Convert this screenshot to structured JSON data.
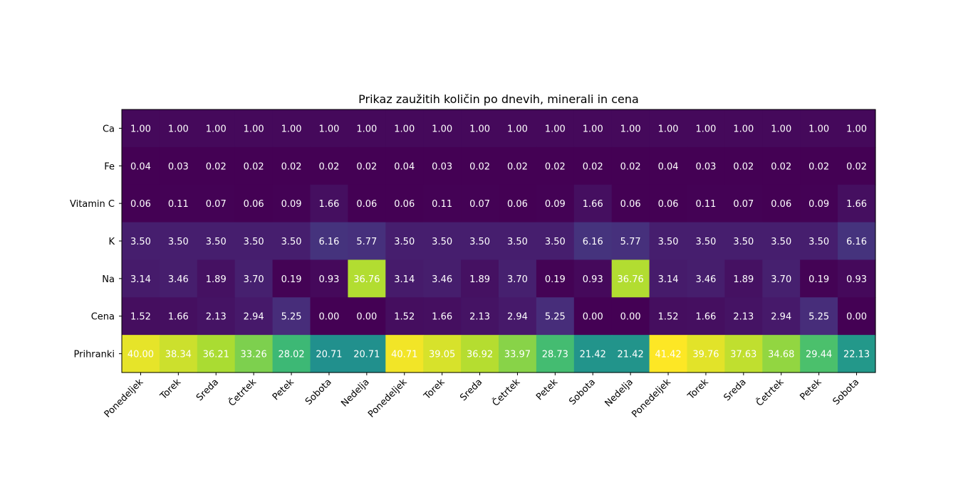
{
  "chart_data": {
    "type": "heatmap",
    "title": "Prikaz zaužitih količin po dnevih, minerali in cena",
    "xlabel": "",
    "ylabel": "",
    "colormap": "viridis",
    "grid": false,
    "legend": "none",
    "x_categories": [
      "Ponedeljek",
      "Torek",
      "Sreda",
      "Četrtek",
      "Petek",
      "Sobota",
      "Nedelja",
      "Ponedeljek",
      "Torek",
      "Sreda",
      "Četrtek",
      "Petek",
      "Sobota",
      "Nedelja",
      "Ponedeljek",
      "Torek",
      "Sreda",
      "Četrtek",
      "Petek",
      "Sobota"
    ],
    "y_categories": [
      "Ca",
      "Fe",
      "Vitamin C",
      "K",
      "Na",
      "Cena",
      "Prihranki"
    ],
    "values": [
      [
        1.0,
        1.0,
        1.0,
        1.0,
        1.0,
        1.0,
        1.0,
        1.0,
        1.0,
        1.0,
        1.0,
        1.0,
        1.0,
        1.0,
        1.0,
        1.0,
        1.0,
        1.0,
        1.0,
        1.0
      ],
      [
        0.04,
        0.03,
        0.02,
        0.02,
        0.02,
        0.02,
        0.02,
        0.04,
        0.03,
        0.02,
        0.02,
        0.02,
        0.02,
        0.02,
        0.04,
        0.03,
        0.02,
        0.02,
        0.02,
        0.02
      ],
      [
        0.06,
        0.11,
        0.07,
        0.06,
        0.09,
        1.66,
        0.06,
        0.06,
        0.11,
        0.07,
        0.06,
        0.09,
        1.66,
        0.06,
        0.06,
        0.11,
        0.07,
        0.06,
        0.09,
        1.66
      ],
      [
        3.5,
        3.5,
        3.5,
        3.5,
        3.5,
        6.16,
        5.77,
        3.5,
        3.5,
        3.5,
        3.5,
        3.5,
        6.16,
        5.77,
        3.5,
        3.5,
        3.5,
        3.5,
        3.5,
        6.16
      ],
      [
        3.14,
        3.46,
        1.89,
        3.7,
        0.19,
        0.93,
        36.76,
        3.14,
        3.46,
        1.89,
        3.7,
        0.19,
        0.93,
        36.76,
        3.14,
        3.46,
        1.89,
        3.7,
        0.19,
        0.93
      ],
      [
        1.52,
        1.66,
        2.13,
        2.94,
        5.25,
        0.0,
        0.0,
        1.52,
        1.66,
        2.13,
        2.94,
        5.25,
        0.0,
        0.0,
        1.52,
        1.66,
        2.13,
        2.94,
        5.25,
        0.0
      ],
      [
        40.0,
        38.34,
        36.21,
        33.26,
        28.02,
        20.71,
        20.71,
        40.71,
        39.05,
        36.92,
        33.97,
        28.73,
        21.42,
        21.42,
        41.42,
        39.76,
        37.63,
        34.68,
        29.44,
        22.13
      ]
    ],
    "value_range": [
      0.0,
      41.42
    ]
  }
}
